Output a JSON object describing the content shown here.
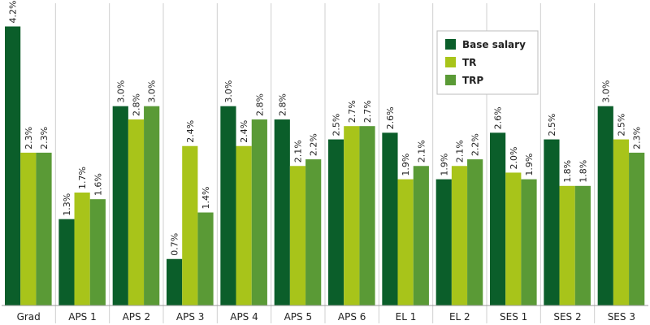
{
  "chart_data": {
    "type": "bar",
    "categories": [
      "Grad",
      "APS 1",
      "APS 2",
      "APS 3",
      "APS 4",
      "APS 5",
      "APS 6",
      "EL 1",
      "EL 2",
      "SES 1",
      "SES 2",
      "SES 3"
    ],
    "series": [
      {
        "name": "Base salary",
        "color": "#0b5e2a",
        "values": [
          4.2,
          1.3,
          3.0,
          0.7,
          3.0,
          2.8,
          2.5,
          2.6,
          1.9,
          2.6,
          2.5,
          3.0
        ],
        "labels": [
          "4.2%",
          "1.3%",
          "3.0%",
          "0.7%",
          "3.0%",
          "2.8%",
          "2.5%",
          "2.6%",
          "1.9%",
          "2.6%",
          "2.5%",
          "3.0%"
        ]
      },
      {
        "name": "TR",
        "color": "#a8c41a",
        "values": [
          2.3,
          1.7,
          2.8,
          2.4,
          2.4,
          2.1,
          2.7,
          1.9,
          2.1,
          2.0,
          1.8,
          2.5
        ],
        "labels": [
          "2.3%",
          "1.7%",
          "2.8%",
          "2.4%",
          "2.4%",
          "2.1%",
          "2.7%",
          "1.9%",
          "2.1%",
          "2.0%",
          "1.8%",
          "2.5%"
        ]
      },
      {
        "name": "TRP",
        "color": "#5a9a36",
        "values": [
          2.3,
          1.6,
          3.0,
          1.4,
          2.8,
          2.2,
          2.7,
          2.1,
          2.2,
          1.9,
          1.8,
          2.3
        ],
        "labels": [
          "2.3%",
          "1.6%",
          "3.0%",
          "1.4%",
          "2.8%",
          "2.2%",
          "2.7%",
          "2.1%",
          "2.2%",
          "1.9%",
          "1.8%",
          "2.3%"
        ]
      }
    ],
    "ylim": [
      0,
      4.5
    ],
    "grid": false,
    "legend_position": "top-right",
    "title": "",
    "xlabel": "",
    "ylabel": ""
  }
}
